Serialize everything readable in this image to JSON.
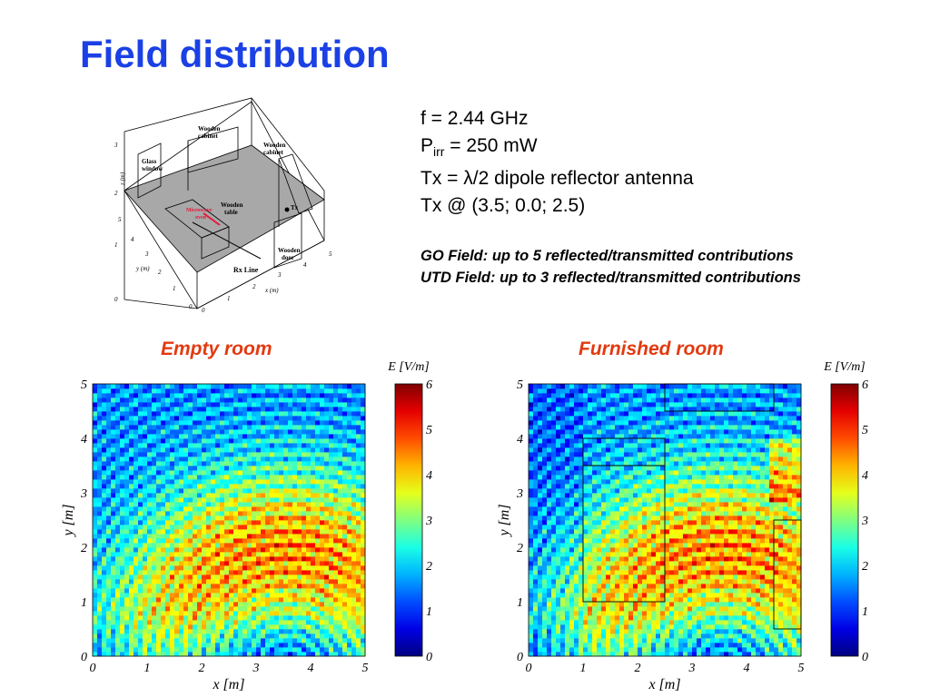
{
  "title": "Field distribution",
  "params": {
    "freq": "f = 2.44 GHz",
    "power_main": "P",
    "power_sub": "irr",
    "power_rest": " = 250 mW",
    "tx_antenna": "Tx = λ/2 dipole reflector antenna",
    "tx_position": "Tx @ (3.5; 0.0; 2.5)"
  },
  "notes": {
    "go": "GO Field: up to 5 reflected/transmitted contributions",
    "utd": "UTD Field: up to 3 reflected/transmitted contributions"
  },
  "room_diagram": {
    "labels": {
      "glass_window": [
        "Glass",
        "window"
      ],
      "wooden_cabinet_1": [
        "Wooden",
        "cabinet"
      ],
      "wooden_cabinet_2": [
        "Wooden",
        "cabinet"
      ],
      "wooden_table": [
        "Wooden",
        "table"
      ],
      "microwave": [
        "Microwave",
        "oven"
      ],
      "tx": "Tx",
      "wooden_door": [
        "Wooden",
        "door"
      ],
      "rx_line": "Rx Line",
      "z_axis": "z (m)",
      "y_axis": "y (m)",
      "x_axis": "x (m)"
    },
    "z_ticks": [
      "0",
      "1",
      "2",
      "3"
    ],
    "y_ticks": [
      "5",
      "4",
      "3",
      "2",
      "1",
      "0"
    ],
    "x_ticks": [
      "0",
      "1",
      "2",
      "3",
      "4",
      "5"
    ]
  },
  "panels": [
    {
      "title": "Empty room",
      "furnished": false
    },
    {
      "title": "Furnished room",
      "furnished": true
    }
  ],
  "colorbar": {
    "title": "E [V/m]",
    "ticks": [
      "6",
      "5",
      "4",
      "3",
      "2",
      "1",
      "0"
    ],
    "min": 0,
    "max": 6
  },
  "chart_data": [
    {
      "type": "heatmap",
      "title": "Empty room",
      "xlabel": "x [m]",
      "ylabel": "y [m]",
      "xlim": [
        0,
        5
      ],
      "ylim": [
        0,
        5
      ],
      "x_ticks": [
        "0",
        "1",
        "2",
        "3",
        "4",
        "5"
      ],
      "y_ticks": [
        "0",
        "1",
        "2",
        "3",
        "4",
        "5"
      ],
      "colorbar": {
        "label": "E [V/m]",
        "range": [
          0,
          6
        ]
      },
      "colormap": "jet"
    },
    {
      "type": "heatmap",
      "title": "Furnished room",
      "xlabel": "x [m]",
      "ylabel": "y [m]",
      "xlim": [
        0,
        5
      ],
      "ylim": [
        0,
        5
      ],
      "x_ticks": [
        "0",
        "1",
        "2",
        "3",
        "4",
        "5"
      ],
      "y_ticks": [
        "0",
        "1",
        "2",
        "3",
        "4",
        "5"
      ],
      "colorbar": {
        "label": "E [V/m]",
        "range": [
          0,
          6
        ]
      },
      "colormap": "jet",
      "furniture_outlines_m": [
        {
          "name": "cabinet",
          "x": [
            1.0,
            2.5
          ],
          "y": [
            3.5,
            4.0
          ]
        },
        {
          "name": "table",
          "x": [
            1.0,
            2.5
          ],
          "y": [
            1.0,
            3.5
          ]
        },
        {
          "name": "top-cabinet",
          "x": [
            2.5,
            4.5
          ],
          "y": [
            4.5,
            5.0
          ]
        },
        {
          "name": "door",
          "x": [
            4.5,
            5.0
          ],
          "y": [
            0.5,
            2.5
          ]
        }
      ]
    }
  ]
}
